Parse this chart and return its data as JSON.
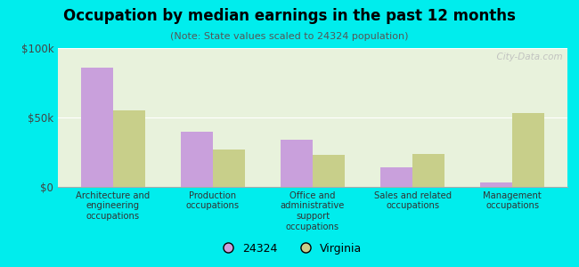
{
  "title": "Occupation by median earnings in the past 12 months",
  "subtitle": "(Note: State values scaled to 24324 population)",
  "categories": [
    "Architecture and\nengineering\noccupations",
    "Production\noccupations",
    "Office and\nadministrative\nsupport\noccupations",
    "Sales and related\noccupations",
    "Management\noccupations"
  ],
  "values_24324": [
    86000,
    40000,
    34000,
    14000,
    3000
  ],
  "values_virginia": [
    55000,
    27000,
    23000,
    24000,
    53000
  ],
  "color_24324": "#c9a0dc",
  "color_virginia": "#c8cf8a",
  "background_color": "#00eded",
  "plot_bg": "#e8f2dc",
  "ylim": [
    0,
    100000
  ],
  "yticks": [
    0,
    50000,
    100000
  ],
  "ytick_labels": [
    "$0",
    "$50k",
    "$100k"
  ],
  "bar_width": 0.32,
  "legend_label_24324": "24324",
  "legend_label_virginia": "Virginia",
  "watermark": "  City-Data.com"
}
